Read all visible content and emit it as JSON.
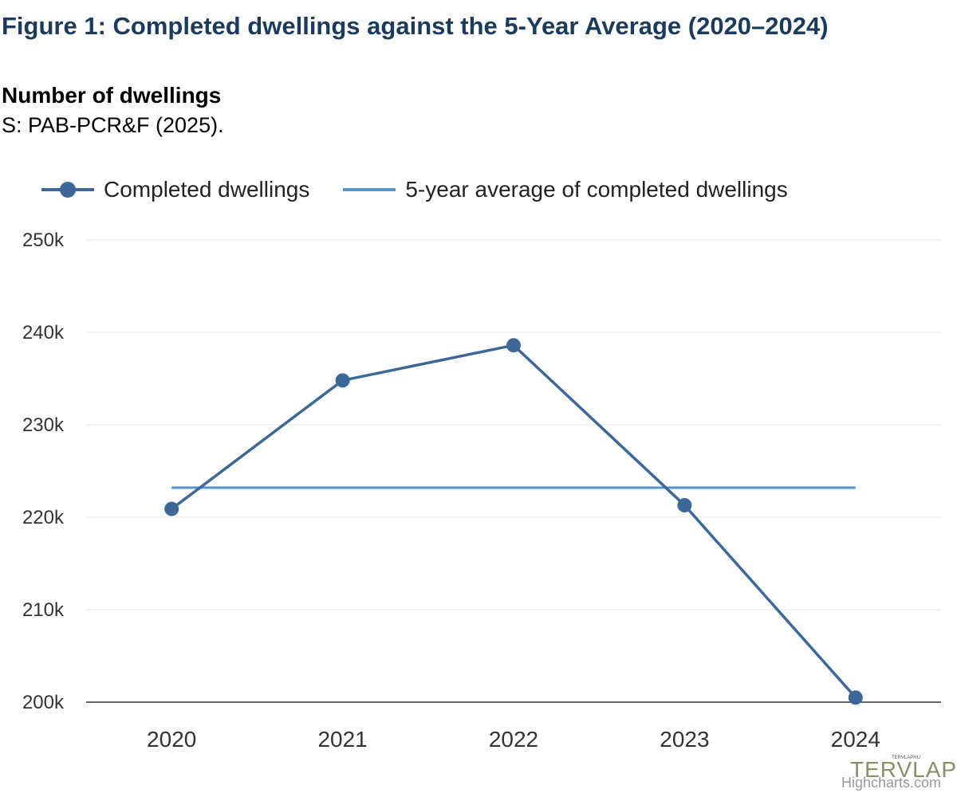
{
  "header": {
    "title": "Figure 1: Completed dwellings against the 5-Year Average (2020–2024)",
    "subtitle": "Number of dwellings",
    "source": "S: PAB-PCR&F (2025)."
  },
  "legend": {
    "items": [
      {
        "label": "Completed dwellings",
        "color": "#3d6797"
      },
      {
        "label": "5-year average of completed dwellings",
        "color": "#5296cf"
      }
    ]
  },
  "chart_data": {
    "type": "line",
    "categories": [
      "2020",
      "2021",
      "2022",
      "2023",
      "2024"
    ],
    "series": [
      {
        "name": "Completed dwellings",
        "values": [
          220900,
          234800,
          238600,
          221300,
          200500
        ],
        "color": "#3d6797",
        "markers": true
      },
      {
        "name": "5-year average of completed dwellings",
        "values": [
          223200,
          223200,
          223200,
          223200,
          223200
        ],
        "color": "#5296cf",
        "markers": false
      }
    ],
    "ylim": [
      200000,
      250000
    ],
    "yticks": [
      200000,
      210000,
      220000,
      230000,
      240000,
      250000
    ],
    "ytick_labels": [
      "200k",
      "210k",
      "220k",
      "230k",
      "240k",
      "250k"
    ],
    "grid": true,
    "legend_position": "top-left"
  },
  "credits": "Highcharts.com",
  "watermark": {
    "text": "TERVLAP",
    "small": "TERVLAPHU"
  }
}
